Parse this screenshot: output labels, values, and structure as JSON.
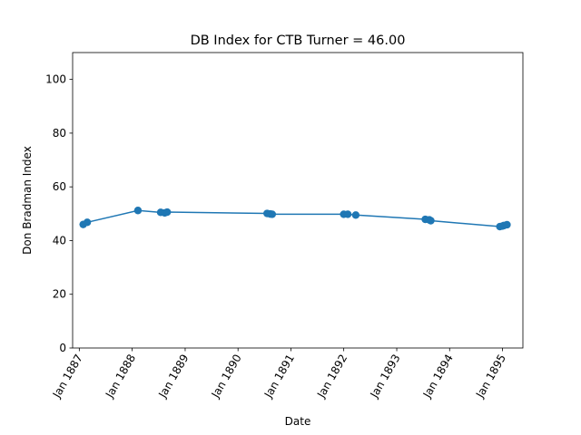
{
  "chart_data": {
    "type": "line",
    "title": "DB Index for CTB Turner = 46.00",
    "xlabel": "Date",
    "ylabel": "Don Bradman Index",
    "ylim": [
      0,
      110
    ],
    "yticks": [
      0,
      20,
      40,
      60,
      80,
      100
    ],
    "xlim": [
      "1886-11-16",
      "1895-05-22"
    ],
    "xticks": [
      {
        "label": "Jan 1887",
        "date": "1887-01-01"
      },
      {
        "label": "Jan 1888",
        "date": "1888-01-01"
      },
      {
        "label": "Jan 1889",
        "date": "1889-01-01"
      },
      {
        "label": "Jan 1890",
        "date": "1890-01-01"
      },
      {
        "label": "Jan 1891",
        "date": "1891-01-01"
      },
      {
        "label": "Jan 1892",
        "date": "1892-01-01"
      },
      {
        "label": "Jan 1893",
        "date": "1893-01-01"
      },
      {
        "label": "Jan 1894",
        "date": "1894-01-01"
      },
      {
        "label": "Jan 1895",
        "date": "1895-01-01"
      }
    ],
    "grid": false,
    "color": "#1f77b4",
    "series": [
      {
        "name": "",
        "points": [
          {
            "x": "1887-01-28",
            "y": 46.0
          },
          {
            "x": "1887-02-25",
            "y": 46.8
          },
          {
            "x": "1888-02-10",
            "y": 51.2
          },
          {
            "x": "1888-07-16",
            "y": 50.5
          },
          {
            "x": "1888-08-13",
            "y": 50.3
          },
          {
            "x": "1888-08-30",
            "y": 50.6
          },
          {
            "x": "1890-07-21",
            "y": 50.1
          },
          {
            "x": "1890-08-11",
            "y": 49.9
          },
          {
            "x": "1890-08-25",
            "y": 49.8
          },
          {
            "x": "1892-01-01",
            "y": 49.8
          },
          {
            "x": "1892-01-29",
            "y": 49.8
          },
          {
            "x": "1892-03-24",
            "y": 49.5
          },
          {
            "x": "1893-07-17",
            "y": 47.9
          },
          {
            "x": "1893-08-14",
            "y": 47.7
          },
          {
            "x": "1893-08-24",
            "y": 47.4
          },
          {
            "x": "1894-12-14",
            "y": 45.2
          },
          {
            "x": "1895-01-01",
            "y": 45.4
          },
          {
            "x": "1895-01-11",
            "y": 45.6
          },
          {
            "x": "1895-02-01",
            "y": 45.9
          }
        ]
      }
    ]
  }
}
